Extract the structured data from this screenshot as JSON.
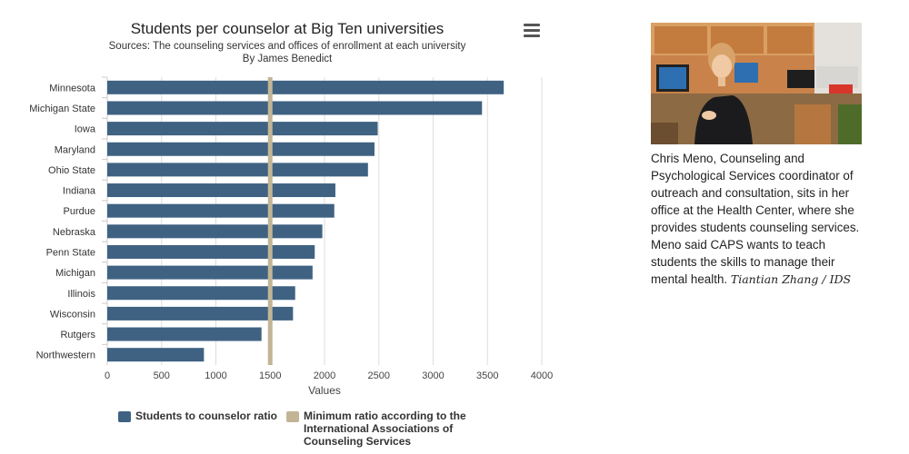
{
  "chart_data": {
    "type": "bar",
    "orientation": "horizontal",
    "title": "Students per counselor at Big Ten universities",
    "subtitle_lines": [
      "Sources: The counseling services and offices of enrollment at each university",
      "By James Benedict"
    ],
    "xlabel": "Values",
    "ylabel": "",
    "xlim": [
      0,
      4000
    ],
    "xticks": [
      0,
      500,
      1000,
      1500,
      2000,
      2500,
      3000,
      3500,
      4000
    ],
    "grid": "vertical",
    "categories": [
      "Minnesota",
      "Michigan State",
      "Iowa",
      "Maryland",
      "Ohio State",
      "Indiana",
      "Purdue",
      "Nebraska",
      "Penn State",
      "Michigan",
      "Illinois",
      "Wisconsin",
      "Rutgers",
      "Northwestern"
    ],
    "series": [
      {
        "name": "Students to counselor ratio",
        "color": "#3f6282",
        "values": [
          3650,
          3450,
          2490,
          2460,
          2400,
          2100,
          2090,
          1980,
          1910,
          1890,
          1730,
          1710,
          1420,
          890
        ]
      }
    ],
    "reference_line": {
      "name": "Minimum ratio according to the International Associations of Counseling Services",
      "value": 1500,
      "color": "#c2b596"
    },
    "legend_position": "bottom-left"
  },
  "caption": {
    "text": "Chris Meno, Counseling and Psychological Services coordinator of outreach and consultation, sits in her office at the Health Center, where she provides students counseling services. Meno said CAPS wants to teach students the skills to manage their mental health.",
    "credit": "Tiantian Zhang / IDS"
  },
  "menu": {
    "icon": "hamburger-menu-icon"
  }
}
